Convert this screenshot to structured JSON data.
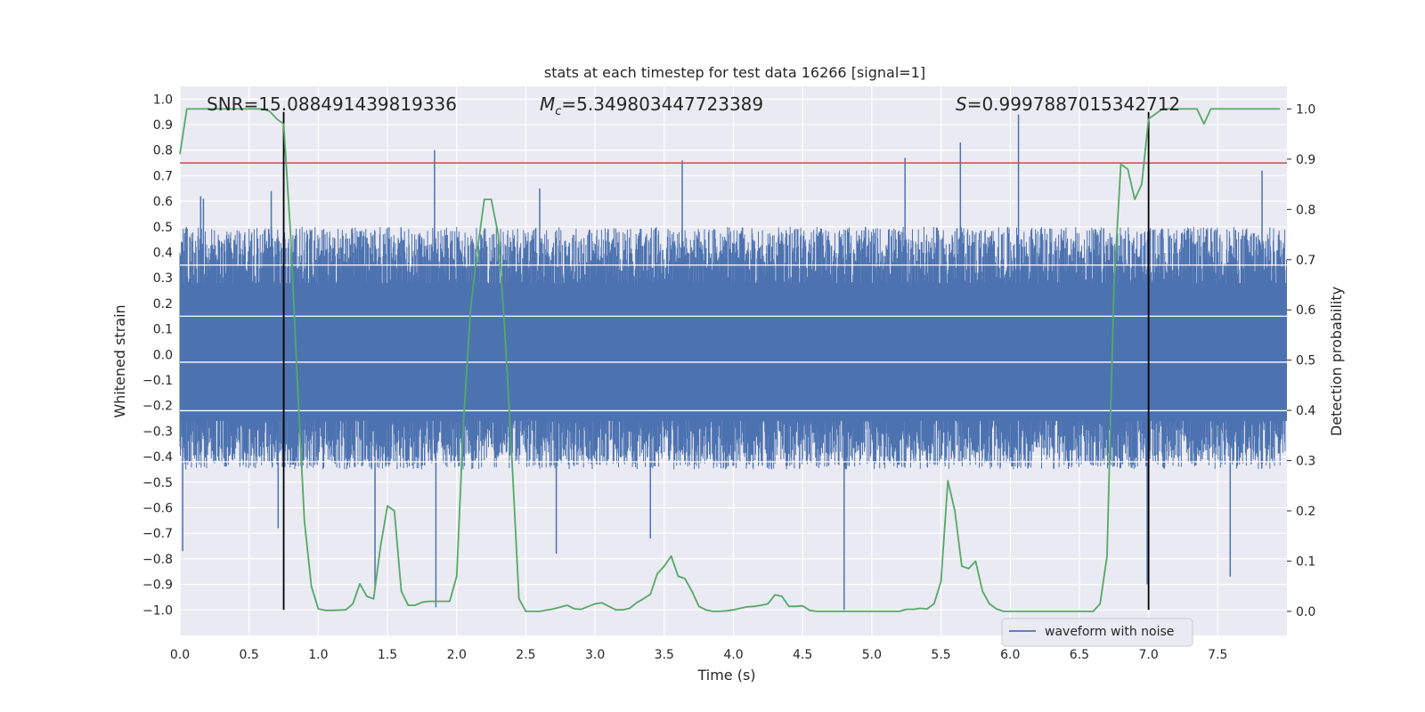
{
  "chart_data": {
    "type": "line",
    "title": "stats at each timestep for test data 16266 [signal=1]",
    "xlabel": "Time (s)",
    "ylabel_left": "Whitened strain",
    "ylabel_right": "Detection probability",
    "xlim": [
      0,
      8
    ],
    "ylim_left": [
      -1.1,
      1.05
    ],
    "ylim_right": [
      -0.048,
      1.045
    ],
    "x_ticks": [
      "0.0",
      "0.5",
      "1.0",
      "1.5",
      "2.0",
      "2.5",
      "3.0",
      "3.5",
      "4.0",
      "4.5",
      "5.0",
      "5.5",
      "6.0",
      "6.5",
      "7.0",
      "7.5"
    ],
    "y_left_ticks": [
      "1.0",
      "0.9",
      "0.8",
      "0.7",
      "0.6",
      "0.5",
      "0.4",
      "0.3",
      "0.2",
      "0.1",
      "0.0",
      "-0.1",
      "-0.2",
      "-0.3",
      "-0.4",
      "-0.5",
      "-0.6",
      "-0.7",
      "-0.8",
      "-0.9",
      "-1.0"
    ],
    "y_right_ticks": [
      "0.0",
      "0.1",
      "0.2",
      "0.3",
      "0.4",
      "0.5",
      "0.6",
      "0.7",
      "0.8",
      "0.9",
      "1.0"
    ],
    "grid": true,
    "legend_placement": "lower-right",
    "annotations": {
      "snr": "SNR=15.088491439819336",
      "mc_symbol": "M",
      "mc_sub": "c",
      "mc_value": "=5.349803447723389",
      "s_symbol": "S",
      "s_value": "=0.9997887015342712"
    },
    "series": [
      {
        "name": "waveform with noise",
        "axis": "left",
        "color": "#4c72b0",
        "style": "dense-noise",
        "typical_range": [
          -0.45,
          0.5
        ],
        "spikes": [
          {
            "x": 0.02,
            "y": -0.77
          },
          {
            "x": 0.15,
            "y": 0.62
          },
          {
            "x": 0.17,
            "y": 0.61
          },
          {
            "x": 0.66,
            "y": 0.64
          },
          {
            "x": 0.71,
            "y": -0.68
          },
          {
            "x": 1.41,
            "y": -0.92
          },
          {
            "x": 1.84,
            "y": 0.8
          },
          {
            "x": 1.85,
            "y": -0.99
          },
          {
            "x": 2.6,
            "y": 0.65
          },
          {
            "x": 2.72,
            "y": -0.78
          },
          {
            "x": 3.4,
            "y": -0.72
          },
          {
            "x": 3.63,
            "y": 0.76
          },
          {
            "x": 4.8,
            "y": -1.0
          },
          {
            "x": 5.24,
            "y": 0.77
          },
          {
            "x": 5.64,
            "y": 0.83
          },
          {
            "x": 6.06,
            "y": 0.94
          },
          {
            "x": 6.99,
            "y": -0.9
          },
          {
            "x": 7.59,
            "y": -0.87
          },
          {
            "x": 7.82,
            "y": 0.72
          }
        ]
      },
      {
        "name": "",
        "axis": "right",
        "color": "#55a868",
        "x": [
          0.0,
          0.05,
          0.1,
          0.2,
          0.3,
          0.4,
          0.5,
          0.6,
          0.65,
          0.7,
          0.75,
          0.8,
          0.85,
          0.9,
          0.95,
          1.0,
          1.05,
          1.1,
          1.2,
          1.25,
          1.3,
          1.35,
          1.4,
          1.45,
          1.5,
          1.55,
          1.6,
          1.65,
          1.7,
          1.75,
          1.8,
          1.85,
          1.9,
          1.95,
          2.0,
          2.05,
          2.1,
          2.15,
          2.2,
          2.25,
          2.3,
          2.35,
          2.4,
          2.45,
          2.5,
          2.6,
          2.7,
          2.8,
          2.85,
          2.9,
          3.0,
          3.05,
          3.1,
          3.15,
          3.2,
          3.25,
          3.3,
          3.35,
          3.4,
          3.45,
          3.5,
          3.55,
          3.6,
          3.65,
          3.7,
          3.75,
          3.8,
          3.85,
          3.9,
          3.95,
          4.0,
          4.1,
          4.15,
          4.2,
          4.25,
          4.3,
          4.35,
          4.4,
          4.45,
          4.5,
          4.55,
          4.6,
          4.7,
          4.8,
          4.9,
          5.0,
          5.1,
          5.2,
          5.25,
          5.3,
          5.35,
          5.4,
          5.45,
          5.5,
          5.55,
          5.6,
          5.65,
          5.7,
          5.75,
          5.8,
          5.85,
          5.9,
          5.95,
          6.0,
          6.05,
          6.1,
          6.15,
          6.2,
          6.3,
          6.4,
          6.5,
          6.6,
          6.65,
          6.7,
          6.75,
          6.8,
          6.85,
          6.9,
          6.95,
          7.0,
          7.05,
          7.1,
          7.15,
          7.2,
          7.25,
          7.3,
          7.35,
          7.4,
          7.45,
          7.5,
          7.55,
          7.6,
          7.65,
          7.7,
          7.8,
          7.95
        ],
        "y": [
          0.91,
          1.0,
          1.0,
          1.0,
          1.0,
          1.0,
          1.0,
          1.0,
          0.995,
          0.98,
          0.97,
          0.75,
          0.45,
          0.18,
          0.05,
          0.005,
          0.002,
          0.002,
          0.003,
          0.015,
          0.055,
          0.03,
          0.025,
          0.13,
          0.21,
          0.2,
          0.04,
          0.012,
          0.012,
          0.018,
          0.02,
          0.02,
          0.02,
          0.02,
          0.07,
          0.38,
          0.6,
          0.72,
          0.82,
          0.82,
          0.75,
          0.55,
          0.3,
          0.025,
          0.0,
          0.0,
          0.005,
          0.012,
          0.005,
          0.004,
          0.015,
          0.017,
          0.01,
          0.003,
          0.003,
          0.006,
          0.017,
          0.025,
          0.034,
          0.075,
          0.09,
          0.11,
          0.07,
          0.065,
          0.04,
          0.01,
          0.003,
          0.0,
          0.0,
          0.001,
          0.003,
          0.009,
          0.01,
          0.012,
          0.015,
          0.033,
          0.03,
          0.01,
          0.01,
          0.011,
          0.002,
          0.0,
          0.0,
          0.0,
          0.0,
          0.0,
          0.0,
          0.0,
          0.004,
          0.004,
          0.006,
          0.005,
          0.015,
          0.06,
          0.26,
          0.2,
          0.09,
          0.085,
          0.1,
          0.04,
          0.015,
          0.005,
          0.0,
          0.0,
          0.0,
          0.0,
          0.0,
          0.0,
          0.0,
          0.0,
          0.0,
          0.0,
          0.015,
          0.11,
          0.65,
          0.89,
          0.88,
          0.82,
          0.85,
          0.98,
          0.99,
          1.0,
          1.0,
          1.0,
          1.0,
          1.0,
          1.0,
          0.97,
          1.0,
          1.0,
          1.0,
          1.0,
          1.0,
          1.0,
          1.0,
          1.0
        ]
      }
    ],
    "threshold_line": {
      "axis": "left",
      "y": 0.75,
      "color": "#c44e52"
    },
    "vertical_markers": [
      {
        "x": 0.75,
        "y_range": [
          -1.0,
          0.95
        ],
        "color": "#000000"
      },
      {
        "x": 7.0,
        "y_range": [
          -1.0,
          0.95
        ],
        "color": "#000000"
      }
    ],
    "colors": {
      "axes_bg": "#eaeaf2",
      "grid": "#ffffff"
    }
  }
}
